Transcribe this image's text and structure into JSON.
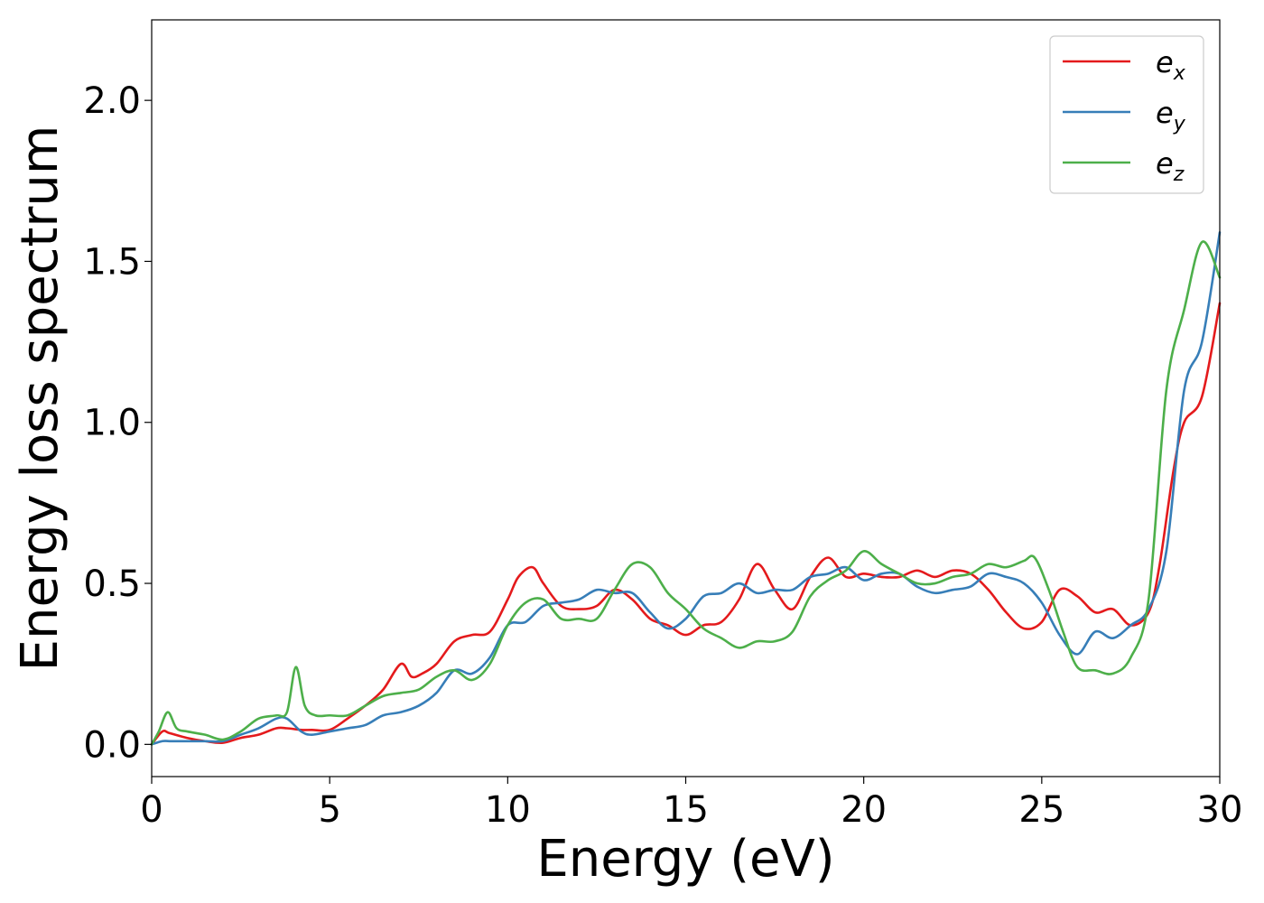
{
  "chart_data": {
    "type": "line",
    "title": "",
    "xlabel": "Energy (eV)",
    "ylabel": "Energy loss spectrum",
    "xlim": [
      0,
      30
    ],
    "ylim": [
      -0.1,
      2.25
    ],
    "xticks": [
      0,
      5,
      10,
      15,
      20,
      25,
      30
    ],
    "xtick_labels": [
      "0",
      "5",
      "10",
      "15",
      "20",
      "25",
      "30"
    ],
    "yticks": [
      0.0,
      0.5,
      1.0,
      1.5,
      2.0
    ],
    "ytick_labels": [
      "0.0",
      "0.5",
      "1.0",
      "1.5",
      "2.0"
    ],
    "grid": false,
    "legend_position": "top-right",
    "series": [
      {
        "name": "e",
        "subscript": "x",
        "color": "#e41a1c",
        "x": [
          0,
          0.3,
          0.5,
          1,
          1.5,
          2,
          2.5,
          3,
          3.5,
          3.8,
          4.2,
          4.5,
          5,
          5.5,
          6,
          6.5,
          7,
          7.3,
          7.6,
          8,
          8.5,
          9,
          9.5,
          10,
          10.3,
          10.7,
          11,
          11.5,
          12,
          12.5,
          13,
          13.5,
          14,
          14.5,
          15,
          15.5,
          16,
          16.5,
          17,
          17.5,
          18,
          18.5,
          19,
          19.5,
          20,
          20.5,
          21,
          21.5,
          22,
          22.5,
          23,
          23.5,
          24,
          24.5,
          25,
          25.5,
          26,
          26.5,
          27,
          27.5,
          28,
          28.3,
          28.7,
          29,
          29.5,
          30
        ],
        "y": [
          0.0,
          0.04,
          0.035,
          0.02,
          0.01,
          0.005,
          0.02,
          0.03,
          0.05,
          0.05,
          0.045,
          0.045,
          0.045,
          0.08,
          0.12,
          0.17,
          0.25,
          0.21,
          0.22,
          0.25,
          0.32,
          0.34,
          0.35,
          0.45,
          0.52,
          0.55,
          0.5,
          0.43,
          0.42,
          0.43,
          0.48,
          0.45,
          0.39,
          0.37,
          0.34,
          0.37,
          0.38,
          0.45,
          0.56,
          0.48,
          0.42,
          0.52,
          0.58,
          0.52,
          0.53,
          0.52,
          0.52,
          0.54,
          0.52,
          0.54,
          0.53,
          0.48,
          0.41,
          0.36,
          0.38,
          0.48,
          0.46,
          0.41,
          0.42,
          0.37,
          0.41,
          0.55,
          0.85,
          1.0,
          1.08,
          1.37
        ]
      },
      {
        "name": "e",
        "subscript": "y",
        "color": "#377eb8",
        "x": [
          0,
          0.3,
          0.5,
          1,
          1.5,
          2,
          2.5,
          3,
          3.5,
          3.8,
          4.2,
          4.5,
          5,
          5.5,
          6,
          6.5,
          7,
          7.5,
          8,
          8.5,
          9,
          9.5,
          10,
          10.5,
          11,
          11.5,
          12,
          12.5,
          13,
          13.5,
          14,
          14.5,
          15,
          15.5,
          16,
          16.5,
          17,
          17.5,
          18,
          18.5,
          19,
          19.5,
          20,
          20.5,
          21,
          21.5,
          22,
          22.5,
          23,
          23.5,
          24,
          24.5,
          25,
          25.5,
          26,
          26.5,
          27,
          27.5,
          28,
          28.5,
          29,
          29.5,
          30
        ],
        "y": [
          0.0,
          0.01,
          0.01,
          0.01,
          0.01,
          0.01,
          0.03,
          0.05,
          0.08,
          0.08,
          0.04,
          0.03,
          0.04,
          0.05,
          0.06,
          0.09,
          0.1,
          0.12,
          0.16,
          0.23,
          0.22,
          0.27,
          0.37,
          0.38,
          0.43,
          0.44,
          0.45,
          0.48,
          0.47,
          0.47,
          0.41,
          0.36,
          0.39,
          0.46,
          0.47,
          0.5,
          0.47,
          0.48,
          0.48,
          0.52,
          0.53,
          0.55,
          0.51,
          0.53,
          0.53,
          0.49,
          0.47,
          0.48,
          0.49,
          0.53,
          0.52,
          0.5,
          0.44,
          0.34,
          0.28,
          0.35,
          0.33,
          0.37,
          0.42,
          0.6,
          1.1,
          1.25,
          1.59
        ]
      },
      {
        "name": "e",
        "subscript": "z",
        "color": "#4daf4a",
        "x": [
          0,
          0.2,
          0.45,
          0.7,
          1,
          1.5,
          2,
          2.5,
          3,
          3.5,
          3.8,
          4.05,
          4.3,
          4.6,
          5,
          5.5,
          6,
          6.5,
          7,
          7.5,
          8,
          8.5,
          9,
          9.5,
          10,
          10.5,
          11,
          11.5,
          12,
          12.5,
          13,
          13.5,
          14,
          14.5,
          15,
          15.5,
          16,
          16.5,
          17,
          17.5,
          18,
          18.5,
          19,
          19.5,
          20,
          20.5,
          21,
          21.5,
          22,
          22.5,
          23,
          23.5,
          24,
          24.5,
          24.8,
          25.2,
          25.6,
          26,
          26.5,
          27,
          27.5,
          28,
          28.5,
          29,
          29.5,
          30
        ],
        "y": [
          0.0,
          0.04,
          0.1,
          0.05,
          0.04,
          0.03,
          0.015,
          0.04,
          0.08,
          0.09,
          0.1,
          0.24,
          0.12,
          0.09,
          0.09,
          0.09,
          0.12,
          0.15,
          0.16,
          0.17,
          0.21,
          0.23,
          0.2,
          0.25,
          0.37,
          0.44,
          0.45,
          0.39,
          0.39,
          0.39,
          0.48,
          0.56,
          0.55,
          0.47,
          0.42,
          0.36,
          0.33,
          0.3,
          0.32,
          0.32,
          0.35,
          0.46,
          0.51,
          0.54,
          0.6,
          0.56,
          0.53,
          0.5,
          0.5,
          0.52,
          0.53,
          0.56,
          0.55,
          0.57,
          0.58,
          0.48,
          0.35,
          0.24,
          0.23,
          0.22,
          0.27,
          0.45,
          1.1,
          1.35,
          1.56,
          1.45
        ]
      }
    ]
  }
}
